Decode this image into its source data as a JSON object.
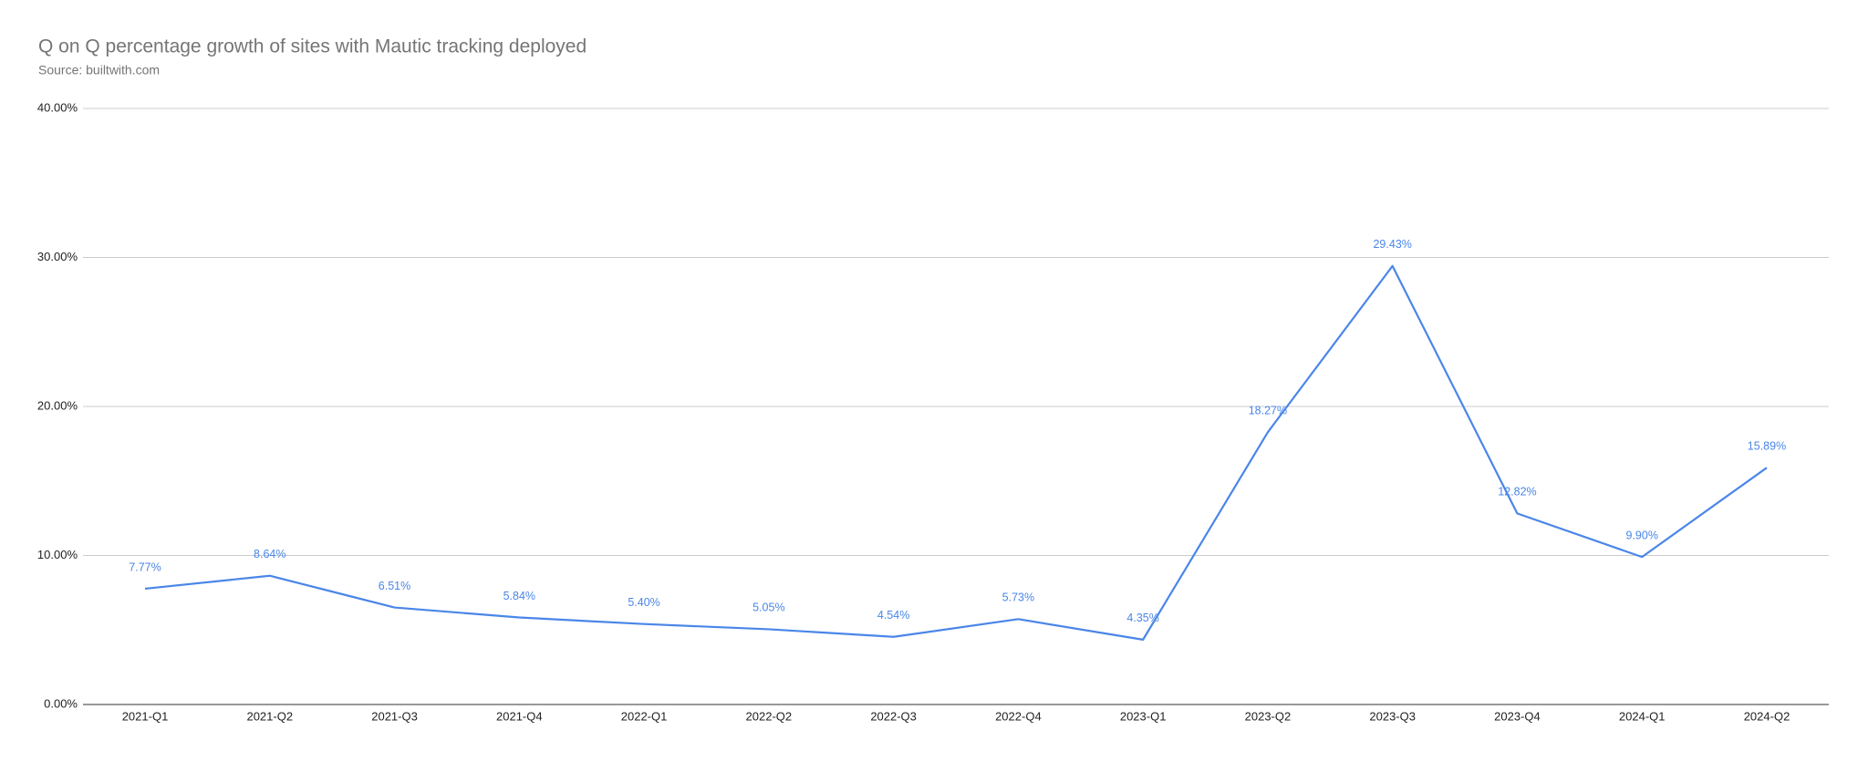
{
  "chart_data": {
    "type": "line",
    "title": "Q on Q percentage growth of sites with Mautic tracking deployed",
    "subtitle": "Source: builtwith.com",
    "categories": [
      "2021-Q1",
      "2021-Q2",
      "2021-Q3",
      "2021-Q4",
      "2022-Q1",
      "2022-Q2",
      "2022-Q3",
      "2022-Q4",
      "2023-Q1",
      "2023-Q2",
      "2023-Q3",
      "2023-Q4",
      "2024-Q1",
      "2024-Q2"
    ],
    "values": [
      7.77,
      8.64,
      6.51,
      5.84,
      5.4,
      5.05,
      4.54,
      5.73,
      4.35,
      18.27,
      29.43,
      12.82,
      9.9,
      15.89
    ],
    "value_labels": [
      "7.77%",
      "8.64%",
      "6.51%",
      "5.84%",
      "5.40%",
      "5.05%",
      "4.54%",
      "5.73%",
      "4.35%",
      "18.27%",
      "29.43%",
      "12.82%",
      "9.90%",
      "15.89%"
    ],
    "color": "#4a86e8",
    "ylim": [
      0,
      40
    ],
    "yticks": [
      {
        "value": 0,
        "label": "0.00%"
      },
      {
        "value": 10,
        "label": "10.00%"
      },
      {
        "value": 20,
        "label": "20.00%"
      },
      {
        "value": 30,
        "label": "30.00%"
      },
      {
        "value": 40,
        "label": "40.00%"
      }
    ],
    "grid": true
  }
}
